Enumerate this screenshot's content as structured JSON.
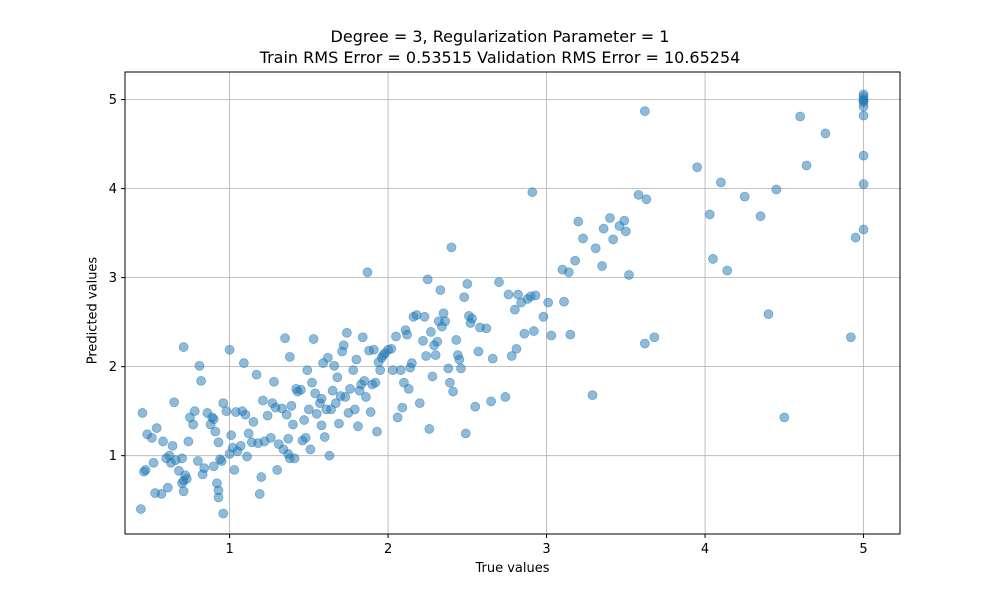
{
  "chart_data": {
    "type": "scatter",
    "title": "Degree = 3, Regularization Parameter = 1",
    "subtitle": "Train RMS Error = 0.53515 Validation RMS Error = 10.65254",
    "xlabel": "True values",
    "ylabel": "Predicted values",
    "xlim": [
      0.34,
      5.23
    ],
    "ylim": [
      0.12,
      5.31
    ],
    "xticks": [
      1,
      2,
      3,
      4,
      5
    ],
    "yticks": [
      1,
      2,
      3,
      4,
      5
    ],
    "grid": true,
    "point_color": "#1f77b4",
    "point_alpha": 0.5,
    "points": [
      [
        0.44,
        0.4
      ],
      [
        0.45,
        1.48
      ],
      [
        0.46,
        0.82
      ],
      [
        0.47,
        0.84
      ],
      [
        0.48,
        1.24
      ],
      [
        0.51,
        1.2
      ],
      [
        0.52,
        0.92
      ],
      [
        0.53,
        0.58
      ],
      [
        0.54,
        1.31
      ],
      [
        0.57,
        0.57
      ],
      [
        0.58,
        1.16
      ],
      [
        0.6,
        0.97
      ],
      [
        0.61,
        0.64
      ],
      [
        0.62,
        1.0
      ],
      [
        0.63,
        0.92
      ],
      [
        0.64,
        1.11
      ],
      [
        0.65,
        1.6
      ],
      [
        0.66,
        0.95
      ],
      [
        0.68,
        0.83
      ],
      [
        0.7,
        0.69
      ],
      [
        0.7,
        0.97
      ],
      [
        0.71,
        0.72
      ],
      [
        0.71,
        0.6
      ],
      [
        0.72,
        0.78
      ],
      [
        0.73,
        0.74
      ],
      [
        0.74,
        1.16
      ],
      [
        0.71,
        2.22
      ],
      [
        0.75,
        1.43
      ],
      [
        0.77,
        1.35
      ],
      [
        0.78,
        1.5
      ],
      [
        0.8,
        0.94
      ],
      [
        0.81,
        2.01
      ],
      [
        0.82,
        1.84
      ],
      [
        0.83,
        0.79
      ],
      [
        0.84,
        0.86
      ],
      [
        0.86,
        1.48
      ],
      [
        0.88,
        1.35
      ],
      [
        0.89,
        1.43
      ],
      [
        0.9,
        1.41
      ],
      [
        0.9,
        0.88
      ],
      [
        0.91,
        1.27
      ],
      [
        0.92,
        0.69
      ],
      [
        0.93,
        0.61
      ],
      [
        0.93,
        0.53
      ],
      [
        0.93,
        1.15
      ],
      [
        0.94,
        0.96
      ],
      [
        0.95,
        0.94
      ],
      [
        0.96,
        0.35
      ],
      [
        0.96,
        1.59
      ],
      [
        0.98,
        1.5
      ],
      [
        1.0,
        1.02
      ],
      [
        1.0,
        2.19
      ],
      [
        1.01,
        1.23
      ],
      [
        1.02,
        1.09
      ],
      [
        1.03,
        0.84
      ],
      [
        1.04,
        1.49
      ],
      [
        1.05,
        1.05
      ],
      [
        1.07,
        1.11
      ],
      [
        1.08,
        1.5
      ],
      [
        1.09,
        2.04
      ],
      [
        1.1,
        1.46
      ],
      [
        1.11,
        0.99
      ],
      [
        1.12,
        1.25
      ],
      [
        1.14,
        1.15
      ],
      [
        1.15,
        1.38
      ],
      [
        1.17,
        1.91
      ],
      [
        1.18,
        1.14
      ],
      [
        1.19,
        0.57
      ],
      [
        1.2,
        0.76
      ],
      [
        1.21,
        1.62
      ],
      [
        1.22,
        1.16
      ],
      [
        1.24,
        1.45
      ],
      [
        1.26,
        1.2
      ],
      [
        1.27,
        1.59
      ],
      [
        1.28,
        1.83
      ],
      [
        1.29,
        1.54
      ],
      [
        1.3,
        0.84
      ],
      [
        1.31,
        1.13
      ],
      [
        1.33,
        1.53
      ],
      [
        1.34,
        1.07
      ],
      [
        1.35,
        2.32
      ],
      [
        1.36,
        1.46
      ],
      [
        1.37,
        1.19
      ],
      [
        1.37,
        1.02
      ],
      [
        1.38,
        0.97
      ],
      [
        1.38,
        2.11
      ],
      [
        1.39,
        1.56
      ],
      [
        1.4,
        1.35
      ],
      [
        1.41,
        0.97
      ],
      [
        1.42,
        1.75
      ],
      [
        1.43,
        1.72
      ],
      [
        1.45,
        1.74
      ],
      [
        1.46,
        1.17
      ],
      [
        1.47,
        1.4
      ],
      [
        1.48,
        1.2
      ],
      [
        1.49,
        1.96
      ],
      [
        1.5,
        1.52
      ],
      [
        1.51,
        1.07
      ],
      [
        1.52,
        1.82
      ],
      [
        1.53,
        2.31
      ],
      [
        1.54,
        1.7
      ],
      [
        1.55,
        1.47
      ],
      [
        1.57,
        1.59
      ],
      [
        1.58,
        1.34
      ],
      [
        1.58,
        1.64
      ],
      [
        1.59,
        2.04
      ],
      [
        1.6,
        1.21
      ],
      [
        1.61,
        1.52
      ],
      [
        1.62,
        2.1
      ],
      [
        1.63,
        1.0
      ],
      [
        1.64,
        1.52
      ],
      [
        1.65,
        1.73
      ],
      [
        1.66,
        2.01
      ],
      [
        1.67,
        1.59
      ],
      [
        1.68,
        1.88
      ],
      [
        1.69,
        1.36
      ],
      [
        1.7,
        1.67
      ],
      [
        1.71,
        2.17
      ],
      [
        1.72,
        2.24
      ],
      [
        1.73,
        1.66
      ],
      [
        1.74,
        2.38
      ],
      [
        1.75,
        1.48
      ],
      [
        1.76,
        1.75
      ],
      [
        1.78,
        1.96
      ],
      [
        1.79,
        1.52
      ],
      [
        1.8,
        2.08
      ],
      [
        1.81,
        1.33
      ],
      [
        1.82,
        1.73
      ],
      [
        1.83,
        1.8
      ],
      [
        1.84,
        2.33
      ],
      [
        1.85,
        1.84
      ],
      [
        1.86,
        1.66
      ],
      [
        1.87,
        3.06
      ],
      [
        1.88,
        2.18
      ],
      [
        1.89,
        1.49
      ],
      [
        1.9,
        1.8
      ],
      [
        1.91,
        2.19
      ],
      [
        1.92,
        1.82
      ],
      [
        1.93,
        1.27
      ],
      [
        1.94,
        2.05
      ],
      [
        1.95,
        1.96
      ],
      [
        1.96,
        2.1
      ],
      [
        1.97,
        2.13
      ],
      [
        1.98,
        2.15
      ],
      [
        2.0,
        2.19
      ],
      [
        2.02,
        2.2
      ],
      [
        2.03,
        1.96
      ],
      [
        2.05,
        2.34
      ],
      [
        2.06,
        1.43
      ],
      [
        2.08,
        1.96
      ],
      [
        2.09,
        1.54
      ],
      [
        2.1,
        1.82
      ],
      [
        2.11,
        2.41
      ],
      [
        2.12,
        2.36
      ],
      [
        2.13,
        1.75
      ],
      [
        2.14,
        1.99
      ],
      [
        2.15,
        2.04
      ],
      [
        2.16,
        2.56
      ],
      [
        2.18,
        2.58
      ],
      [
        2.2,
        1.59
      ],
      [
        2.22,
        2.29
      ],
      [
        2.23,
        2.56
      ],
      [
        2.24,
        2.12
      ],
      [
        2.25,
        2.98
      ],
      [
        2.26,
        1.3
      ],
      [
        2.27,
        2.39
      ],
      [
        2.28,
        1.89
      ],
      [
        2.29,
        2.24
      ],
      [
        2.3,
        2.13
      ],
      [
        2.31,
        2.28
      ],
      [
        2.32,
        2.51
      ],
      [
        2.33,
        2.86
      ],
      [
        2.34,
        2.45
      ],
      [
        2.35,
        2.6
      ],
      [
        2.36,
        2.51
      ],
      [
        2.38,
        1.98
      ],
      [
        2.39,
        1.82
      ],
      [
        2.4,
        3.34
      ],
      [
        2.41,
        1.72
      ],
      [
        2.43,
        2.3
      ],
      [
        2.44,
        2.13
      ],
      [
        2.45,
        2.08
      ],
      [
        2.46,
        1.98
      ],
      [
        2.48,
        2.78
      ],
      [
        2.49,
        1.25
      ],
      [
        2.5,
        2.93
      ],
      [
        2.51,
        2.57
      ],
      [
        2.52,
        2.49
      ],
      [
        2.53,
        2.54
      ],
      [
        2.55,
        1.55
      ],
      [
        2.57,
        2.17
      ],
      [
        2.58,
        2.44
      ],
      [
        2.62,
        2.43
      ],
      [
        2.65,
        1.61
      ],
      [
        2.66,
        2.09
      ],
      [
        2.7,
        2.95
      ],
      [
        2.74,
        1.66
      ],
      [
        2.76,
        2.81
      ],
      [
        2.78,
        2.12
      ],
      [
        2.8,
        2.64
      ],
      [
        2.81,
        2.2
      ],
      [
        2.82,
        2.81
      ],
      [
        2.84,
        2.72
      ],
      [
        2.86,
        2.37
      ],
      [
        2.88,
        2.76
      ],
      [
        2.9,
        2.79
      ],
      [
        2.91,
        3.96
      ],
      [
        2.92,
        2.4
      ],
      [
        2.93,
        2.8
      ],
      [
        2.98,
        2.56
      ],
      [
        3.01,
        2.72
      ],
      [
        3.03,
        2.35
      ],
      [
        3.1,
        3.09
      ],
      [
        3.11,
        2.73
      ],
      [
        3.14,
        3.06
      ],
      [
        3.15,
        2.36
      ],
      [
        3.18,
        3.19
      ],
      [
        3.2,
        3.63
      ],
      [
        3.23,
        3.44
      ],
      [
        3.29,
        1.68
      ],
      [
        3.31,
        3.33
      ],
      [
        3.35,
        3.13
      ],
      [
        3.36,
        3.55
      ],
      [
        3.4,
        3.67
      ],
      [
        3.42,
        3.43
      ],
      [
        3.46,
        3.58
      ],
      [
        3.49,
        3.64
      ],
      [
        3.5,
        3.52
      ],
      [
        3.52,
        3.03
      ],
      [
        3.58,
        3.93
      ],
      [
        3.62,
        4.87
      ],
      [
        3.62,
        2.26
      ],
      [
        3.63,
        3.88
      ],
      [
        3.68,
        2.33
      ],
      [
        3.95,
        4.24
      ],
      [
        4.03,
        3.71
      ],
      [
        4.05,
        3.21
      ],
      [
        4.1,
        4.07
      ],
      [
        4.14,
        3.08
      ],
      [
        4.25,
        3.91
      ],
      [
        4.35,
        3.69
      ],
      [
        4.4,
        2.59
      ],
      [
        4.45,
        3.99
      ],
      [
        4.5,
        1.43
      ],
      [
        4.6,
        4.81
      ],
      [
        4.64,
        4.26
      ],
      [
        4.76,
        4.62
      ],
      [
        4.92,
        2.33
      ],
      [
        4.95,
        3.45
      ],
      [
        5.0,
        4.82
      ],
      [
        5.0,
        4.37
      ],
      [
        5.0,
        4.05
      ],
      [
        5.0,
        3.54
      ],
      [
        5.0,
        4.92
      ],
      [
        5.0,
        4.97
      ],
      [
        5.0,
        5.0
      ],
      [
        5.0,
        5.03
      ],
      [
        5.0,
        5.06
      ],
      [
        5.0,
        4.99
      ]
    ]
  }
}
